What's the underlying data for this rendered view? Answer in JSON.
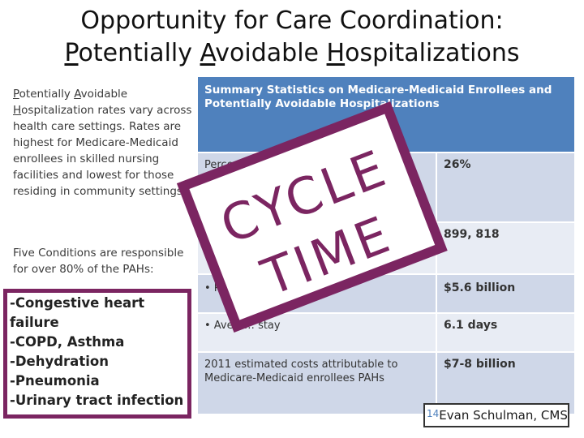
{
  "title": {
    "line1": "Opportunity for Care Coordination:",
    "line2_parts": [
      "P",
      "otentially ",
      "A",
      "voidable ",
      "H",
      "ospitalizations"
    ]
  },
  "left": {
    "para1_parts": [
      "P",
      "otentially ",
      "A",
      "voidable",
      "H",
      "ospitalization rates vary across health care settings. Rates are highest for Medicare-Medicaid enrollees in skilled nursing facilities and lowest for those residing in community settings."
    ],
    "para2": "Five Conditions are responsible for over 80% of the PAHs:",
    "conditions": [
      "-Congestive heart",
      "failure",
      "-COPD, Asthma",
      "-Dehydration",
      "-Pneumonia",
      "-Urinary tract infection"
    ]
  },
  "table": {
    "header": "Summary Statistics on Medicare-Medicaid Enrollees and Potentially Avoidable Hospitalizations",
    "rows": [
      {
        "label": "Percentage of h… were potenti…",
        "value": "26%"
      },
      {
        "label": "",
        "value": "899, 818"
      },
      {
        "label": "• P…",
        "value": "$5.6 billion"
      },
      {
        "label": "• Avera… stay",
        "value": "6.1 days"
      },
      {
        "label": "2011 estimated costs attributable to Medicare-Medicaid enrollees PAHs",
        "value": "$7-8 billion"
      }
    ]
  },
  "stamp": {
    "line1": "CYCLE",
    "line2": "TIME",
    "color": "#7b2561"
  },
  "credit": {
    "slide_number": "14",
    "author": "Evan Schulman, CMS"
  },
  "colors": {
    "header_blue": "#4f81bd",
    "row_dark": "#cfd7e8",
    "row_light": "#e8ecf4",
    "accent": "#7b2561"
  }
}
